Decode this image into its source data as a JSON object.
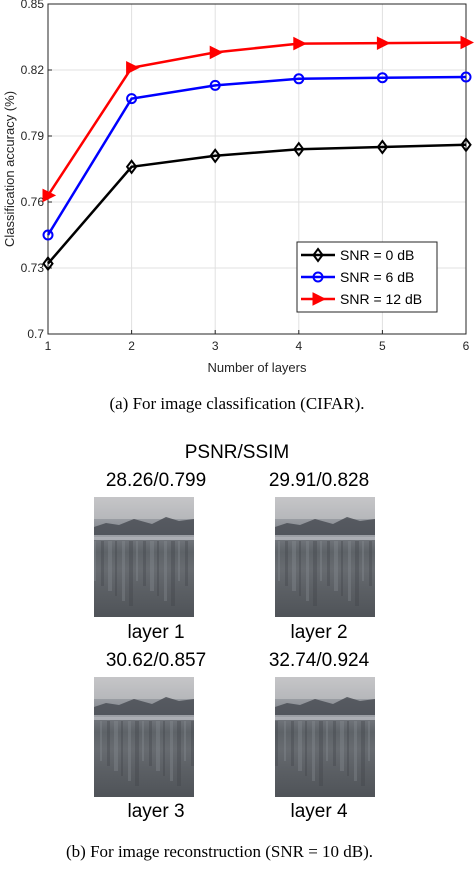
{
  "chart_data": {
    "type": "line",
    "xlabel": "Number of layers",
    "ylabel": "Classification accuracy (%)",
    "x": [
      1,
      2,
      3,
      4,
      5,
      6
    ],
    "xlim": [
      1,
      6
    ],
    "ylim": [
      0.7,
      0.85
    ],
    "x_ticks": [
      "1",
      "2",
      "3",
      "4",
      "5",
      "6"
    ],
    "y_ticks": [
      "0.7",
      "0.73",
      "0.76",
      "0.79",
      "0.82",
      "0.85"
    ],
    "y_tick_values": [
      0.7,
      0.73,
      0.76,
      0.79,
      0.82,
      0.85
    ],
    "grid": true,
    "legend_position": "bottom-right",
    "series": [
      {
        "name": "SNR = 0 dB",
        "values": [
          0.732,
          0.776,
          0.781,
          0.784,
          0.785,
          0.786
        ],
        "color": "#000000",
        "marker": "diamond"
      },
      {
        "name": "SNR = 6 dB",
        "values": [
          0.745,
          0.807,
          0.813,
          0.816,
          0.8165,
          0.8168
        ],
        "color": "#0000ff",
        "marker": "circle"
      },
      {
        "name": "SNR = 12 dB",
        "values": [
          0.763,
          0.821,
          0.828,
          0.832,
          0.8322,
          0.8325
        ],
        "color": "#ff0000",
        "marker": "triangle-right"
      }
    ]
  },
  "caption_a": "(a)  For image classification (CIFAR).",
  "recon": {
    "title": "PSNR/SSIM",
    "items": [
      {
        "metric": "28.26/0.799",
        "label": "layer 1"
      },
      {
        "metric": "29.91/0.828",
        "label": "layer 2"
      },
      {
        "metric": "30.62/0.857",
        "label": "layer 3"
      },
      {
        "metric": "32.74/0.924",
        "label": "layer 4"
      }
    ]
  },
  "caption_b": "(b)  For image reconstruction (SNR = 10 dB)."
}
